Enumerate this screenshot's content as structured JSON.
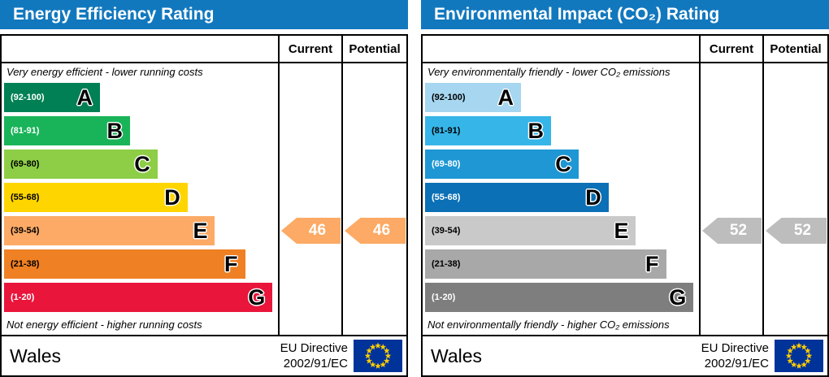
{
  "chart_data": [
    {
      "type": "bar",
      "orientation": "horizontal",
      "title": "Energy Efficiency Rating",
      "categories": [
        "A",
        "B",
        "C",
        "D",
        "E",
        "F",
        "G"
      ],
      "band_ranges": [
        "92-100",
        "81-91",
        "69-80",
        "55-68",
        "39-54",
        "21-38",
        "1-20"
      ],
      "band_colors": [
        "#008054",
        "#19b459",
        "#8dce46",
        "#ffd500",
        "#fcaa65",
        "#ef8023",
        "#e9153b"
      ],
      "series": [
        {
          "name": "Current",
          "value": 46,
          "band": "E"
        },
        {
          "name": "Potential",
          "value": 46,
          "band": "E"
        }
      ],
      "top_label": "Very energy efficient - lower running costs",
      "bottom_label": "Not energy efficient - higher running costs",
      "region": "Wales",
      "directive": "EU Directive 2002/91/EC"
    },
    {
      "type": "bar",
      "orientation": "horizontal",
      "title": "Environmental Impact (CO₂) Rating",
      "categories": [
        "A",
        "B",
        "C",
        "D",
        "E",
        "F",
        "G"
      ],
      "band_ranges": [
        "92-100",
        "81-91",
        "69-80",
        "55-68",
        "39-54",
        "21-38",
        "1-20"
      ],
      "band_colors": [
        "#a6d6f0",
        "#36b5e8",
        "#1e97d4",
        "#0b70b5",
        "#c9c9c9",
        "#a8a8a8",
        "#7e7e7e"
      ],
      "series": [
        {
          "name": "Current",
          "value": 52,
          "band": "E"
        },
        {
          "name": "Potential",
          "value": 52,
          "band": "E"
        }
      ],
      "top_label": "Very environmentally friendly - lower CO₂ emissions",
      "bottom_label": "Not environmentally friendly - higher CO₂ emissions",
      "region": "Wales",
      "directive": "EU Directive 2002/91/EC"
    }
  ],
  "panels": [
    {
      "title": "Energy Efficiency Rating",
      "columns": {
        "current": "Current",
        "potential": "Potential"
      },
      "top_note": "Very energy efficient - lower running costs",
      "bottom_note": "Not energy efficient - higher running costs",
      "bands": [
        {
          "range": "(92-100)",
          "letter": "A",
          "color": "#008054",
          "text_color": "#ffffff",
          "width": "35%"
        },
        {
          "range": "(81-91)",
          "letter": "B",
          "color": "#19b459",
          "text_color": "#ffffff",
          "width": "46%"
        },
        {
          "range": "(69-80)",
          "letter": "C",
          "color": "#8dce46",
          "text_color": "#000000",
          "width": "56%"
        },
        {
          "range": "(55-68)",
          "letter": "D",
          "color": "#ffd500",
          "text_color": "#000000",
          "width": "67%"
        },
        {
          "range": "(39-54)",
          "letter": "E",
          "color": "#fcaa65",
          "text_color": "#000000",
          "width": "77%"
        },
        {
          "range": "(21-38)",
          "letter": "F",
          "color": "#ef8023",
          "text_color": "#000000",
          "width": "88%"
        },
        {
          "range": "(1-20)",
          "letter": "G",
          "color": "#e9153b",
          "text_color": "#ffffff",
          "width": "98%"
        }
      ],
      "current": {
        "value": "46",
        "color": "#fcaa65"
      },
      "potential": {
        "value": "46",
        "color": "#fcaa65"
      },
      "footer": {
        "region": "Wales",
        "directive1": "EU Directive",
        "directive2": "2002/91/EC"
      }
    },
    {
      "title": "Environmental Impact (CO₂) Rating",
      "columns": {
        "current": "Current",
        "potential": "Potential"
      },
      "top_note": "Very environmentally friendly - lower CO₂ emissions",
      "bottom_note": "Not environmentally friendly - higher CO₂ emissions",
      "bands": [
        {
          "range": "(92-100)",
          "letter": "A",
          "color": "#a6d6f0",
          "text_color": "#000000",
          "width": "35%"
        },
        {
          "range": "(81-91)",
          "letter": "B",
          "color": "#36b5e8",
          "text_color": "#000000",
          "width": "46%"
        },
        {
          "range": "(69-80)",
          "letter": "C",
          "color": "#1e97d4",
          "text_color": "#ffffff",
          "width": "56%"
        },
        {
          "range": "(55-68)",
          "letter": "D",
          "color": "#0b70b5",
          "text_color": "#ffffff",
          "width": "67%"
        },
        {
          "range": "(39-54)",
          "letter": "E",
          "color": "#c9c9c9",
          "text_color": "#000000",
          "width": "77%"
        },
        {
          "range": "(21-38)",
          "letter": "F",
          "color": "#a8a8a8",
          "text_color": "#000000",
          "width": "88%"
        },
        {
          "range": "(1-20)",
          "letter": "G",
          "color": "#7e7e7e",
          "text_color": "#ffffff",
          "width": "98%"
        }
      ],
      "current": {
        "value": "52",
        "color": "#bdbdbd"
      },
      "potential": {
        "value": "52",
        "color": "#bdbdbd"
      },
      "footer": {
        "region": "Wales",
        "directive1": "EU Directive",
        "directive2": "2002/91/EC"
      }
    }
  ],
  "flag": {
    "background": "#003399",
    "stars": "#ffcc00"
  }
}
